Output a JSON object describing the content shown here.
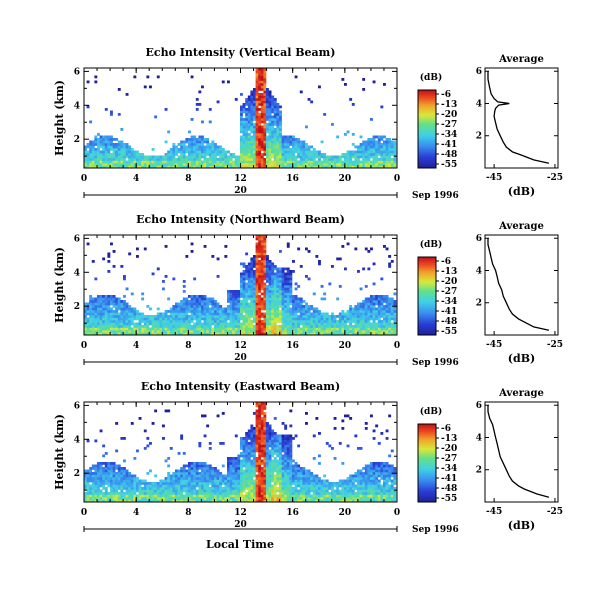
{
  "figure": {
    "xlabel": "Local Time",
    "date_label": "Sep 1996",
    "date_marker": "20",
    "cbar_unit": "(dB)",
    "avg_title": "Average",
    "avg_xlabel": "(dB)"
  },
  "chart_data": [
    {
      "type": "heatmap",
      "title": "Echo Intensity (Vertical Beam)",
      "xlabel": "Local Time",
      "ylabel": "Height (km)",
      "xticks": [
        "0",
        "4",
        "8",
        "12",
        "16",
        "20",
        "0"
      ],
      "yticks": [
        "2",
        "4",
        "6"
      ],
      "xlim": [
        0,
        24
      ],
      "ylim": [
        0.3,
        6.2
      ],
      "colorbar": {
        "label": "(dB)",
        "ticks": [
          "-6",
          "-13",
          "-20",
          "-27",
          "-34",
          "-41",
          "-48",
          "-55"
        ],
        "range": [
          -55,
          -6
        ]
      },
      "profile": {
        "title": "Average",
        "xlabel": "(dB)",
        "xticks": [
          "-45",
          "-25"
        ],
        "yticks": [
          "2",
          "4",
          "6"
        ],
        "heights": [
          0.3,
          0.5,
          0.8,
          1.0,
          1.3,
          1.6,
          2.0,
          2.4,
          2.8,
          3.2,
          3.5,
          3.7,
          3.9,
          4.0,
          4.1,
          4.3,
          4.6,
          5.0,
          5.5,
          6.0
        ],
        "values": [
          -27,
          -32,
          -36,
          -39,
          -41,
          -42,
          -43,
          -44,
          -44.5,
          -45,
          -44.8,
          -44.5,
          -43.5,
          -40,
          -43.8,
          -45,
          -46,
          -46.5,
          -47,
          -47
        ]
      }
    },
    {
      "type": "heatmap",
      "title": "Echo Intensity (Northward Beam)",
      "xlabel": "Local Time",
      "ylabel": "Height (km)",
      "xticks": [
        "0",
        "4",
        "8",
        "12",
        "16",
        "20",
        "0"
      ],
      "yticks": [
        "2",
        "4",
        "6"
      ],
      "xlim": [
        0,
        24
      ],
      "ylim": [
        0.3,
        6.2
      ],
      "colorbar": {
        "label": "(dB)",
        "ticks": [
          "-6",
          "-13",
          "-20",
          "-27",
          "-34",
          "-41",
          "-48",
          "-55"
        ],
        "range": [
          -55,
          -6
        ]
      },
      "profile": {
        "title": "Average",
        "xlabel": "(dB)",
        "xticks": [
          "-45",
          "-25"
        ],
        "yticks": [
          "2",
          "4",
          "6"
        ],
        "heights": [
          0.3,
          0.5,
          0.8,
          1.0,
          1.3,
          1.6,
          2.0,
          2.4,
          2.8,
          3.2,
          3.6,
          4.0,
          4.4,
          4.8,
          5.2,
          5.6,
          6.0
        ],
        "values": [
          -27,
          -32,
          -35,
          -37,
          -39,
          -40,
          -41,
          -42,
          -42.5,
          -43.5,
          -44,
          -44.5,
          -45.5,
          -46,
          -46.5,
          -47,
          -47
        ]
      }
    },
    {
      "type": "heatmap",
      "title": "Echo Intensity (Eastward Beam)",
      "xlabel": "Local Time",
      "ylabel": "Height (km)",
      "xticks": [
        "0",
        "4",
        "8",
        "12",
        "16",
        "20",
        "0"
      ],
      "yticks": [
        "2",
        "4",
        "6"
      ],
      "xlim": [
        0,
        24
      ],
      "ylim": [
        0.3,
        6.2
      ],
      "colorbar": {
        "label": "(dB)",
        "ticks": [
          "-6",
          "-13",
          "-20",
          "-27",
          "-34",
          "-41",
          "-48",
          "-55"
        ],
        "range": [
          -55,
          -6
        ]
      },
      "profile": {
        "title": "Average",
        "xlabel": "(dB)",
        "xticks": [
          "-45",
          "-25"
        ],
        "yticks": [
          "2",
          "4",
          "6"
        ],
        "heights": [
          0.3,
          0.5,
          0.8,
          1.0,
          1.3,
          1.6,
          2.0,
          2.4,
          2.8,
          3.2,
          3.6,
          4.0,
          4.4,
          4.8,
          5.2,
          5.6,
          6.0
        ],
        "values": [
          -27,
          -31,
          -35,
          -37,
          -39,
          -40,
          -41,
          -42,
          -43,
          -43.5,
          -44,
          -44.5,
          -45,
          -45.5,
          -46.5,
          -47,
          -47
        ]
      }
    }
  ]
}
